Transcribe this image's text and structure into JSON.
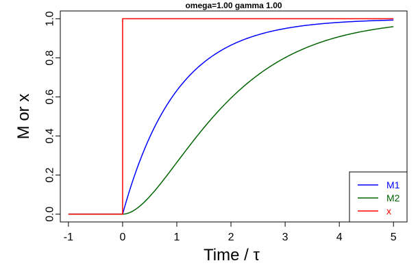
{
  "chart_data": {
    "type": "line",
    "title": "omega=1.00 gamma 1.00",
    "xlabel": "Time / τ",
    "ylabel": "M or x",
    "xlim": [
      -1.15,
      5.25
    ],
    "ylim": [
      -0.04,
      1.04
    ],
    "xticks": [
      -1,
      0,
      1,
      2,
      3,
      4,
      5
    ],
    "xtick_labels": [
      "-1",
      "0",
      "1",
      "2",
      "3",
      "4",
      "5"
    ],
    "yticks": [
      0.0,
      0.2,
      0.4,
      0.6,
      0.8,
      1.0
    ],
    "ytick_labels": [
      "0.0",
      "0.2",
      "0.4",
      "0.6",
      "0.8",
      "1.0"
    ],
    "grid": false,
    "legend_position": "bottom-right",
    "series": [
      {
        "name": "M1",
        "color": "#0000ff",
        "x": [
          -1,
          0,
          0.25,
          0.5,
          0.75,
          1,
          1.25,
          1.5,
          1.75,
          2,
          2.25,
          2.5,
          2.75,
          3,
          3.25,
          3.5,
          3.75,
          4,
          4.25,
          4.5,
          4.75,
          5
        ],
        "y": [
          0,
          0,
          0.221,
          0.393,
          0.528,
          0.632,
          0.713,
          0.777,
          0.826,
          0.865,
          0.895,
          0.918,
          0.936,
          0.95,
          0.961,
          0.97,
          0.976,
          0.982,
          0.986,
          0.989,
          0.991,
          0.993
        ]
      },
      {
        "name": "M2",
        "color": "#006400",
        "x": [
          -1,
          0,
          0.25,
          0.5,
          0.75,
          1,
          1.25,
          1.5,
          1.75,
          2,
          2.25,
          2.5,
          2.75,
          3,
          3.25,
          3.5,
          3.75,
          4,
          4.25,
          4.5,
          4.75,
          5
        ],
        "y": [
          0,
          0,
          0.026,
          0.09,
          0.173,
          0.264,
          0.355,
          0.442,
          0.522,
          0.594,
          0.657,
          0.713,
          0.76,
          0.801,
          0.835,
          0.864,
          0.888,
          0.908,
          0.925,
          0.939,
          0.95,
          0.96
        ]
      },
      {
        "name": "x",
        "color": "#ff0000",
        "x": [
          -1,
          0,
          0,
          5
        ],
        "y": [
          0,
          0,
          1,
          1
        ]
      }
    ]
  }
}
